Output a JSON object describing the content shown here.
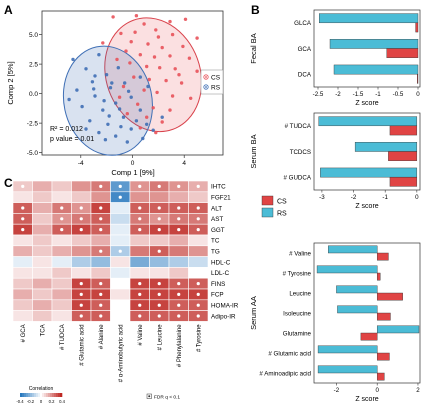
{
  "panel_labels": {
    "a": "A",
    "b": "B",
    "c": "C"
  },
  "chart_data": [
    {
      "id": "A",
      "type": "scatter",
      "xlabel": "Comp 1 [9%]",
      "ylabel": "Comp 2 [5%]",
      "xticks": [
        -4,
        0,
        4
      ],
      "yticks": [
        5.0,
        2.5,
        0.0,
        -2.5,
        -5.0
      ],
      "xlim": [
        -7,
        7
      ],
      "ylim": [
        -5.2,
        7
      ],
      "legend": [
        "CS",
        "RS"
      ],
      "colors": {
        "CS": "#e8525a",
        "RS": "#3f6fb5"
      },
      "annotation_r2": "R² = 0.012",
      "annotation_p": "p value = 0.01",
      "series": [
        {
          "name": "CS",
          "points": [
            [
              -1.5,
              6.5
            ],
            [
              0.3,
              6.6
            ],
            [
              2.9,
              6.1
            ],
            [
              4.1,
              6.3
            ],
            [
              0.9,
              5.9
            ],
            [
              -0.9,
              5.1
            ],
            [
              1.8,
              5.4
            ],
            [
              3.1,
              5.0
            ],
            [
              5.0,
              4.7
            ],
            [
              -2.3,
              4.3
            ],
            [
              -0.1,
              4.4
            ],
            [
              1.2,
              4.2
            ],
            [
              2.3,
              3.9
            ],
            [
              3.9,
              4.0
            ],
            [
              0.6,
              3.3
            ],
            [
              1.7,
              3.1
            ],
            [
              2.9,
              3.2
            ],
            [
              4.4,
              3.0
            ],
            [
              -1.2,
              2.9
            ],
            [
              -0.2,
              2.6
            ],
            [
              1.1,
              2.3
            ],
            [
              2.1,
              2.2
            ],
            [
              3.3,
              2.1
            ],
            [
              5.0,
              1.9
            ],
            [
              0.1,
              1.4
            ],
            [
              1.3,
              1.2
            ],
            [
              2.6,
              1.1
            ],
            [
              3.8,
              0.9
            ],
            [
              -0.7,
              0.6
            ],
            [
              0.9,
              0.3
            ],
            [
              1.9,
              0.1
            ],
            [
              3.1,
              -0.2
            ],
            [
              4.5,
              -0.4
            ],
            [
              0.4,
              -0.9
            ],
            [
              1.6,
              -1.2
            ],
            [
              2.9,
              -1.4
            ],
            [
              -0.4,
              -1.7
            ],
            [
              1.1,
              -2.0
            ],
            [
              2.3,
              -2.4
            ],
            [
              0.6,
              -2.9
            ],
            [
              1.8,
              -3.3
            ],
            [
              -1.0,
              -0.3
            ],
            [
              3.6,
              1.6
            ],
            [
              2.0,
              4.8
            ],
            [
              0.2,
              5.2
            ],
            [
              -0.5,
              3.6
            ]
          ]
        },
        {
          "name": "RS",
          "points": [
            [
              -4.6,
              2.9
            ],
            [
              -3.6,
              2.1
            ],
            [
              -2.6,
              3.3
            ],
            [
              -3.1,
              1.0
            ],
            [
              -2.0,
              1.6
            ],
            [
              -1.1,
              2.2
            ],
            [
              -4.3,
              0.3
            ],
            [
              -2.9,
              -0.2
            ],
            [
              -1.7,
              0.5
            ],
            [
              -0.6,
              0.9
            ],
            [
              -3.9,
              -1.1
            ],
            [
              -2.3,
              -1.4
            ],
            [
              -1.3,
              -0.8
            ],
            [
              -0.1,
              -0.3
            ],
            [
              -3.3,
              -2.3
            ],
            [
              -1.9,
              -2.6
            ],
            [
              -0.7,
              -2.0
            ],
            [
              0.6,
              -1.4
            ],
            [
              -2.6,
              -3.3
            ],
            [
              -1.3,
              -3.6
            ],
            [
              -0.1,
              -3.0
            ],
            [
              1.1,
              -2.6
            ],
            [
              -1.8,
              -1.9
            ],
            [
              -3.0,
              0.4
            ],
            [
              -0.4,
              -4.1
            ],
            [
              0.8,
              -3.8
            ],
            [
              -2.2,
              -0.6
            ],
            [
              -1.0,
              -1.3
            ],
            [
              0.3,
              -2.3
            ],
            [
              1.6,
              -3.1
            ],
            [
              -1.6,
              0.9
            ],
            [
              -0.3,
              0.2
            ],
            [
              -4.9,
              -0.5
            ],
            [
              -3.6,
              -3.0
            ],
            [
              2.3,
              -2.0
            ],
            [
              -2.9,
              1.5
            ],
            [
              1.2,
              0.6
            ],
            [
              -0.9,
              -2.8
            ],
            [
              -2.1,
              -3.9
            ],
            [
              0.6,
              1.4
            ]
          ]
        }
      ]
    },
    {
      "id": "B-Fecal",
      "type": "bar",
      "ylabel": "Fecal BA",
      "xlabel": "Z score",
      "categories": [
        "GLCA",
        "GCA",
        "DCA"
      ],
      "xlim": [
        -2.6,
        0.05
      ],
      "xticks": [
        -2.5,
        -2.0,
        -1.5,
        -1.0,
        -0.5,
        0.0
      ],
      "series": [
        {
          "name": "CS",
          "values": [
            -0.06,
            -0.78,
            -0.02
          ]
        },
        {
          "name": "RS",
          "values": [
            -2.47,
            -2.2,
            -2.1
          ]
        }
      ]
    },
    {
      "id": "B-Serum",
      "type": "bar",
      "ylabel": "Serum BA",
      "xlabel": "Z score",
      "categories": [
        "# TUDCA",
        "TCDCS",
        "# GUDCA"
      ],
      "xlim": [
        -3.25,
        0.1
      ],
      "xticks": [
        -3,
        -2,
        -1,
        0
      ],
      "series": [
        {
          "name": "CS",
          "values": [
            -0.85,
            -0.9,
            -0.85
          ]
        },
        {
          "name": "RS",
          "values": [
            -3.1,
            -1.95,
            -3.05
          ]
        }
      ]
    },
    {
      "id": "B-AA",
      "type": "bar",
      "ylabel": "Serum AA",
      "xlabel": "Z score",
      "categories": [
        "# Valine",
        "# Tyrosine",
        "Leucine",
        "Isoleucine",
        "Glutamine",
        "# Glutamic acid",
        "# Aminoadipic acid"
      ],
      "xlim": [
        -3.1,
        2.1
      ],
      "xticks": [
        -2,
        0,
        2
      ],
      "series": [
        {
          "name": "CS",
          "values": [
            0.55,
            0.15,
            1.25,
            0.65,
            -0.8,
            0.6,
            0.35
          ]
        },
        {
          "name": "RS",
          "values": [
            -2.4,
            -2.95,
            -2.0,
            -1.95,
            2.05,
            -2.9,
            -2.9
          ]
        }
      ]
    },
    {
      "id": "C",
      "type": "heatmap",
      "rows": [
        "IHTC",
        "FGF21",
        "ALT",
        "AST",
        "GGT",
        "TC",
        "TG",
        "HDL-C",
        "LDL-C",
        "FINS",
        "FCP",
        "HOMA-IR",
        "Adipo-IR"
      ],
      "cols": [
        "# GCA",
        "TCA",
        "# TUDCA",
        "# Glutamic acid",
        "# Alanine",
        "# α-Aminobutyric acid",
        "# Valine",
        "# Leucine",
        "# Phenylalanine",
        "# Tyrosine"
      ],
      "values": [
        [
          0.1,
          0.15,
          0.1,
          0.2,
          0.25,
          -0.3,
          0.2,
          0.25,
          0.2,
          0.15
        ],
        [
          0.05,
          0.1,
          0.05,
          0.1,
          0.2,
          -0.35,
          0.2,
          0.2,
          0.15,
          0.1
        ],
        [
          0.3,
          0.15,
          0.25,
          0.2,
          0.35,
          -0.05,
          0.3,
          0.3,
          0.3,
          0.3
        ],
        [
          0.3,
          0.1,
          0.2,
          0.25,
          0.3,
          -0.1,
          0.25,
          0.2,
          0.25,
          0.25
        ],
        [
          0.35,
          0.15,
          0.3,
          0.35,
          0.3,
          -0.05,
          0.3,
          0.35,
          0.35,
          0.3
        ],
        [
          0.05,
          0.1,
          0.05,
          0.1,
          0.15,
          -0.05,
          0.1,
          0.1,
          0.15,
          0.05
        ],
        [
          0.15,
          0.1,
          0.15,
          0.2,
          0.25,
          -0.15,
          0.25,
          0.3,
          0.25,
          0.2
        ],
        [
          -0.05,
          0.05,
          -0.05,
          -0.15,
          -0.2,
          0.05,
          -0.25,
          -0.2,
          -0.15,
          -0.1
        ],
        [
          0.05,
          0.05,
          0.1,
          0.05,
          0.1,
          -0.05,
          0.05,
          0.05,
          0.1,
          0.0
        ],
        [
          0.1,
          0.15,
          0.1,
          0.35,
          0.3,
          0.0,
          0.35,
          0.35,
          0.3,
          0.3
        ],
        [
          0.15,
          0.1,
          0.15,
          0.35,
          0.35,
          0.05,
          0.35,
          0.35,
          0.35,
          0.35
        ],
        [
          0.1,
          0.15,
          0.1,
          0.35,
          0.3,
          0.0,
          0.35,
          0.35,
          0.3,
          0.3
        ],
        [
          0.05,
          0.1,
          0.05,
          0.3,
          0.3,
          0.0,
          0.3,
          0.3,
          0.3,
          0.3
        ]
      ],
      "significant": [
        [
          1,
          0,
          0,
          0,
          1,
          1,
          1,
          1,
          1,
          1
        ],
        [
          0,
          0,
          0,
          0,
          0,
          1,
          0,
          0,
          0,
          0
        ],
        [
          1,
          0,
          1,
          1,
          1,
          0,
          1,
          1,
          1,
          1
        ],
        [
          1,
          0,
          1,
          1,
          1,
          0,
          1,
          1,
          1,
          1
        ],
        [
          1,
          0,
          1,
          1,
          1,
          0,
          1,
          1,
          1,
          1
        ],
        [
          0,
          0,
          0,
          0,
          0,
          0,
          0,
          0,
          0,
          0
        ],
        [
          0,
          0,
          0,
          0,
          1,
          1,
          0,
          1,
          0,
          0
        ],
        [
          0,
          0,
          0,
          0,
          0,
          0,
          0,
          0,
          0,
          0
        ],
        [
          0,
          0,
          0,
          0,
          0,
          0,
          0,
          0,
          0,
          0
        ],
        [
          0,
          0,
          0,
          1,
          1,
          0,
          1,
          1,
          1,
          1
        ],
        [
          0,
          0,
          0,
          1,
          1,
          0,
          1,
          1,
          1,
          1
        ],
        [
          0,
          0,
          0,
          1,
          1,
          0,
          1,
          1,
          1,
          1
        ],
        [
          0,
          0,
          0,
          1,
          1,
          0,
          1,
          1,
          1,
          1
        ]
      ],
      "colorbar_title": "Correlation",
      "colorbar_ticks": [
        "-0.4",
        "-0.2",
        "0",
        "0.2",
        "0.4"
      ],
      "colorbar_range": [
        -0.4,
        0.4
      ],
      "sig_note": "FDR q < 0.1"
    }
  ],
  "legend_b": {
    "cs": "CS",
    "rs": "RS",
    "cs_color": "#e04444",
    "rs_color": "#4bbcd6"
  }
}
